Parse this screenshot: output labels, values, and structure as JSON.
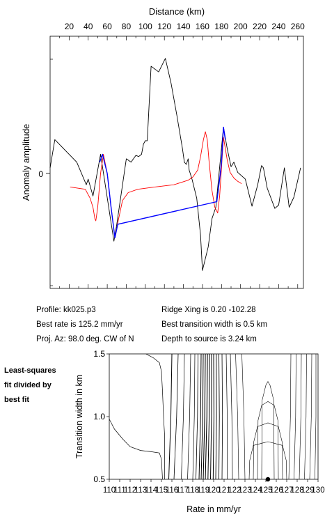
{
  "chart_data": [
    {
      "type": "line",
      "xlabel": "Distance (km)",
      "ylabel": "Anomaly amplitude",
      "xlim": [
        0,
        266
      ],
      "x_ticks": [
        20,
        40,
        60,
        80,
        100,
        120,
        140,
        160,
        180,
        200,
        220,
        240,
        260
      ],
      "y_tick_labels": [
        "0"
      ],
      "ylim": [
        -1.0,
        1.0
      ],
      "grid": false,
      "series": [
        {
          "color": "#000000",
          "points": [
            [
              0,
              0.05
            ],
            [
              5,
              0.3
            ],
            [
              28,
              0.1
            ],
            [
              38,
              -0.1
            ],
            [
              40,
              -0.05
            ],
            [
              45,
              -0.2
            ],
            [
              53,
              0.17
            ],
            [
              67,
              -0.6
            ],
            [
              70,
              -0.45
            ],
            [
              80,
              0.13
            ],
            [
              85,
              0.1
            ],
            [
              90,
              0.16
            ],
            [
              93,
              0.15
            ],
            [
              96,
              0.17
            ],
            [
              98,
              0.26
            ],
            [
              100,
              0.29
            ],
            [
              102,
              0.29
            ],
            [
              106,
              0.95
            ],
            [
              114,
              0.9
            ],
            [
              121,
              1.02
            ],
            [
              127,
              0.8
            ],
            [
              133,
              0.52
            ],
            [
              139,
              0.22
            ],
            [
              141,
              0.1
            ],
            [
              143,
              0.08
            ],
            [
              145,
              0.13
            ],
            [
              146,
              0.03
            ],
            [
              149,
              -0.05
            ],
            [
              154,
              -0.22
            ],
            [
              158,
              -0.55
            ],
            [
              160,
              -0.86
            ],
            [
              166,
              -0.65
            ],
            [
              170,
              -0.4
            ],
            [
              174,
              -0.3
            ],
            [
              182,
              0.41
            ],
            [
              186,
              0.22
            ],
            [
              190,
              0.06
            ],
            [
              193,
              0.1
            ],
            [
              197,
              0.01
            ],
            [
              205,
              -0.05
            ],
            [
              212,
              -0.29
            ],
            [
              218,
              -0.1
            ],
            [
              222,
              0.07
            ],
            [
              224,
              0.05
            ],
            [
              228,
              -0.13
            ],
            [
              236,
              -0.31
            ],
            [
              240,
              -0.28
            ],
            [
              246,
              0.05
            ],
            [
              251,
              -0.3
            ],
            [
              256,
              -0.21
            ],
            [
              263,
              0.05
            ]
          ]
        },
        {
          "color": "#ff0000",
          "points": [
            [
              21,
              -0.12
            ],
            [
              37,
              -0.14
            ],
            [
              42,
              -0.22
            ],
            [
              45,
              -0.3
            ],
            [
              47,
              -0.4
            ],
            [
              48,
              -0.42
            ],
            [
              50,
              -0.3
            ],
            [
              53,
              0.0
            ],
            [
              56,
              0.17
            ],
            [
              60,
              0.0
            ],
            [
              64,
              -0.3
            ],
            [
              68,
              -0.57
            ],
            [
              72,
              -0.4
            ],
            [
              76,
              -0.24
            ],
            [
              82,
              -0.17
            ],
            [
              92,
              -0.14
            ],
            [
              110,
              -0.12
            ],
            [
              130,
              -0.1
            ],
            [
              145,
              -0.06
            ],
            [
              150,
              -0.03
            ],
            [
              155,
              0.03
            ],
            [
              158,
              0.15
            ],
            [
              161,
              0.3
            ],
            [
              163,
              0.37
            ],
            [
              165,
              0.3
            ],
            [
              167,
              0.1
            ],
            [
              170,
              -0.15
            ],
            [
              173,
              -0.3
            ],
            [
              176,
              -0.35
            ],
            [
              178,
              -0.2
            ],
            [
              180,
              0.05
            ],
            [
              182,
              0.32
            ],
            [
              184,
              0.22
            ],
            [
              186,
              0.12
            ],
            [
              189,
              0.01
            ],
            [
              193,
              -0.04
            ],
            [
              197,
              -0.07
            ],
            [
              201,
              -0.09
            ]
          ]
        },
        {
          "color": "#0000ff",
          "points": [
            [
              52,
              0.1
            ],
            [
              55,
              0.17
            ],
            [
              60,
              0.0
            ],
            [
              64,
              -0.3
            ],
            [
              68,
              -0.57
            ],
            [
              71,
              -0.45
            ],
            [
              175,
              -0.25
            ],
            [
              178,
              -0.05
            ],
            [
              180,
              0.1
            ],
            [
              182,
              0.41
            ],
            [
              184,
              0.3
            ]
          ]
        }
      ]
    },
    {
      "type": "contour",
      "title": "Least-squares fit divided by best fit",
      "title_lines": [
        "Least-squares",
        "fit divided by",
        "best fit"
      ],
      "xlabel": "Rate in mm/yr",
      "ylabel": "Transition width in km",
      "xlim": [
        110,
        130
      ],
      "ylim": [
        0.5,
        1.5
      ],
      "x_tick_labels": [
        "110",
        "111",
        "112",
        "113",
        "114",
        "115",
        "116",
        "117",
        "118",
        "119",
        "120",
        "121",
        "122",
        "123",
        "124",
        "125",
        "126",
        "127",
        "128",
        "129",
        "130"
      ],
      "y_tick_labels": [
        "0.5",
        "1.0",
        "1.5"
      ],
      "best_fit_point": {
        "rate": 125.2,
        "width": 0.5
      }
    }
  ],
  "info": {
    "profile": "Profile: kk025.p3",
    "best_rate": "Best rate is 125.2 mm/yr",
    "proj_az": "Proj. Az: 98.0 deg. CW of N",
    "ridge_xing": "Ridge Xing is 0.20 -102.28",
    "best_width": "Best transition width is 0.5 km",
    "depth": "Depth to source is   3.24 km"
  }
}
